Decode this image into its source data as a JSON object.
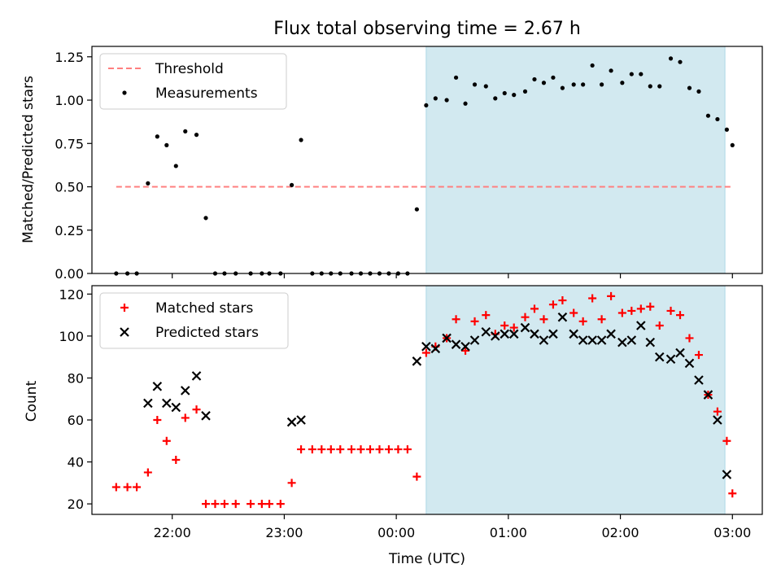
{
  "chart_data": [
    {
      "type": "scatter",
      "title": "Flux total observing time = 2.67 h",
      "xlabel": "",
      "ylabel": "Matched/Predicted stars",
      "xlim": [
        "21:17",
        "03:16"
      ],
      "ylim": [
        0,
        1.31
      ],
      "yticks": [
        0.0,
        0.25,
        0.5,
        0.75,
        1.0,
        1.25
      ],
      "ytick_labels": [
        "0.00",
        "0.25",
        "0.50",
        "0.75",
        "1.00",
        "1.25"
      ],
      "xticks": [
        "22:00",
        "23:00",
        "00:00",
        "01:00",
        "02:00",
        "03:00"
      ],
      "shaded_region": {
        "start": "00:16",
        "end": "02:56",
        "color": "#d2e9f0"
      },
      "legend_position": "upper left",
      "series": [
        {
          "name": "Threshold",
          "style": "dashed-line",
          "color": "#ff7f7f",
          "x": [
            "21:30",
            "03:00"
          ],
          "y": [
            0.5,
            0.5
          ]
        },
        {
          "name": "Measurements",
          "style": "dot",
          "color": "#000000",
          "x": [
            "21:30",
            "21:36",
            "21:41",
            "21:47",
            "21:52",
            "21:57",
            "22:02",
            "22:07",
            "22:13",
            "22:18",
            "22:23",
            "22:28",
            "22:34",
            "22:42",
            "22:48",
            "22:52",
            "22:58",
            "23:04",
            "23:09",
            "23:15",
            "23:20",
            "23:25",
            "23:30",
            "23:36",
            "23:41",
            "23:46",
            "23:51",
            "23:56",
            "00:01",
            "00:06",
            "00:11",
            "00:16",
            "00:21",
            "00:27",
            "00:32",
            "00:37",
            "00:42",
            "00:48",
            "00:53",
            "00:58",
            "01:03",
            "01:09",
            "01:14",
            "01:19",
            "01:24",
            "01:29",
            "01:35",
            "01:40",
            "01:45",
            "01:50",
            "01:55",
            "02:01",
            "02:06",
            "02:11",
            "02:16",
            "02:21",
            "02:27",
            "02:32",
            "02:37",
            "02:42",
            "02:47",
            "02:52",
            "02:57",
            "03:00"
          ],
          "y": [
            0,
            0,
            0,
            0.52,
            0.79,
            0.74,
            0.62,
            0.82,
            0.8,
            0.32,
            0,
            0,
            0,
            0,
            0,
            0,
            0,
            0.51,
            0.77,
            0,
            0,
            0,
            0,
            0,
            0,
            0,
            0,
            0,
            0,
            0,
            0.37,
            0.97,
            1.01,
            1.0,
            1.13,
            0.98,
            1.09,
            1.08,
            1.01,
            1.04,
            1.03,
            1.05,
            1.12,
            1.1,
            1.13,
            1.07,
            1.09,
            1.09,
            1.2,
            1.09,
            1.17,
            1.1,
            1.15,
            1.15,
            1.08,
            1.08,
            1.24,
            1.22,
            1.07,
            1.05,
            0.91,
            0.89,
            0.83,
            0.74
          ]
        }
      ]
    },
    {
      "type": "scatter",
      "title": "",
      "xlabel": "Time (UTC)",
      "ylabel": "Count",
      "xlim": [
        "21:17",
        "03:16"
      ],
      "ylim": [
        15,
        124
      ],
      "yticks": [
        20,
        40,
        60,
        80,
        100,
        120
      ],
      "ytick_labels": [
        "20",
        "40",
        "60",
        "80",
        "100",
        "120"
      ],
      "xticks": [
        "22:00",
        "23:00",
        "00:00",
        "01:00",
        "02:00",
        "03:00"
      ],
      "xtick_labels": [
        "22:00",
        "23:00",
        "00:00",
        "01:00",
        "02:00",
        "03:00"
      ],
      "shaded_region": {
        "start": "00:16",
        "end": "02:56",
        "color": "#d2e9f0"
      },
      "legend_position": "upper left",
      "series": [
        {
          "name": "Matched stars",
          "marker": "plus",
          "color": "#ff0000",
          "x": [
            "21:30",
            "21:36",
            "21:41",
            "21:47",
            "21:52",
            "21:57",
            "22:02",
            "22:07",
            "22:13",
            "22:18",
            "22:23",
            "22:28",
            "22:34",
            "22:42",
            "22:48",
            "22:52",
            "22:58",
            "23:04",
            "23:09",
            "23:15",
            "23:20",
            "23:25",
            "23:30",
            "23:36",
            "23:41",
            "23:46",
            "23:51",
            "23:56",
            "00:01",
            "00:06",
            "00:11",
            "00:16",
            "00:21",
            "00:27",
            "00:32",
            "00:37",
            "00:42",
            "00:48",
            "00:53",
            "00:58",
            "01:03",
            "01:09",
            "01:14",
            "01:19",
            "01:24",
            "01:29",
            "01:35",
            "01:40",
            "01:45",
            "01:50",
            "01:55",
            "02:01",
            "02:06",
            "02:11",
            "02:16",
            "02:21",
            "02:27",
            "02:32",
            "02:37",
            "02:42",
            "02:47",
            "02:52",
            "02:57",
            "03:00"
          ],
          "y": [
            28,
            28,
            28,
            35,
            60,
            50,
            41,
            61,
            65,
            20,
            20,
            20,
            20,
            20,
            20,
            20,
            20,
            30,
            46,
            46,
            46,
            46,
            46,
            46,
            46,
            46,
            46,
            46,
            46,
            46,
            33,
            92,
            95,
            99,
            108,
            93,
            107,
            110,
            101,
            105,
            104,
            109,
            113,
            108,
            115,
            117,
            111,
            107,
            118,
            108,
            119,
            111,
            112,
            113,
            114,
            105,
            112,
            110,
            99,
            91,
            72,
            64,
            50,
            25
          ]
        },
        {
          "name": "Predicted stars",
          "marker": "x",
          "color": "#000000",
          "x": [
            "21:47",
            "21:52",
            "21:57",
            "22:02",
            "22:07",
            "22:13",
            "22:18",
            "23:04",
            "23:09",
            "00:11",
            "00:16",
            "00:21",
            "00:27",
            "00:32",
            "00:37",
            "00:42",
            "00:48",
            "00:53",
            "00:58",
            "01:03",
            "01:09",
            "01:14",
            "01:19",
            "01:24",
            "01:29",
            "01:35",
            "01:40",
            "01:45",
            "01:50",
            "01:55",
            "02:01",
            "02:06",
            "02:11",
            "02:16",
            "02:21",
            "02:27",
            "02:32",
            "02:37",
            "02:42",
            "02:47",
            "02:52",
            "02:57"
          ],
          "y": [
            68,
            76,
            68,
            66,
            74,
            81,
            62,
            59,
            60,
            88,
            95,
            94,
            99,
            96,
            95,
            98,
            102,
            100,
            101,
            101,
            104,
            101,
            98,
            101,
            109,
            101,
            98,
            98,
            98,
            101,
            97,
            98,
            105,
            97,
            90,
            89,
            92,
            87,
            79,
            72,
            60,
            34
          ]
        }
      ]
    }
  ]
}
